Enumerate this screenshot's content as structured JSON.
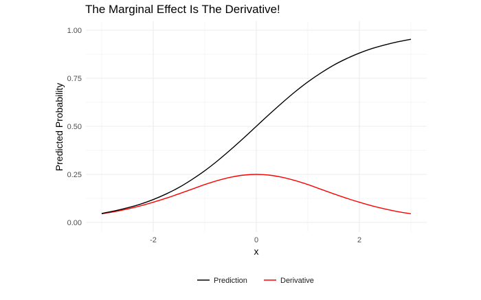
{
  "chart_data": {
    "type": "line",
    "title": "The Marginal Effect Is The Derivative!",
    "xlabel": "x",
    "ylabel": "Predicted Probability",
    "xlim": [
      -3,
      3
    ],
    "ylim": [
      0,
      1
    ],
    "x_ticks": [
      -2,
      0,
      2
    ],
    "x_tick_labels": [
      "-2",
      "0",
      "2"
    ],
    "y_ticks": [
      0,
      0.25,
      0.5,
      0.75,
      1
    ],
    "y_tick_labels": [
      "0.00",
      "0.25",
      "0.50",
      "0.75",
      "1.00"
    ],
    "grid": true,
    "legend_position": "bottom",
    "x": [
      -3.0,
      -2.75,
      -2.5,
      -2.25,
      -2.0,
      -1.75,
      -1.5,
      -1.25,
      -1.0,
      -0.75,
      -0.5,
      -0.25,
      0.0,
      0.25,
      0.5,
      0.75,
      1.0,
      1.25,
      1.5,
      1.75,
      2.0,
      2.25,
      2.5,
      2.75,
      3.0
    ],
    "series": [
      {
        "name": "Prediction",
        "color": "#000000",
        "values": [
          0.047,
          0.06,
          0.076,
          0.095,
          0.119,
          0.148,
          0.182,
          0.223,
          0.269,
          0.321,
          0.378,
          0.438,
          0.5,
          0.562,
          0.622,
          0.679,
          0.731,
          0.777,
          0.818,
          0.852,
          0.881,
          0.905,
          0.924,
          0.94,
          0.953
        ]
      },
      {
        "name": "Derivative",
        "color": "#ff0000",
        "values": [
          0.045,
          0.056,
          0.07,
          0.086,
          0.105,
          0.126,
          0.149,
          0.173,
          0.197,
          0.218,
          0.235,
          0.246,
          0.25,
          0.246,
          0.235,
          0.218,
          0.197,
          0.173,
          0.149,
          0.126,
          0.105,
          0.086,
          0.07,
          0.056,
          0.045
        ]
      }
    ]
  }
}
